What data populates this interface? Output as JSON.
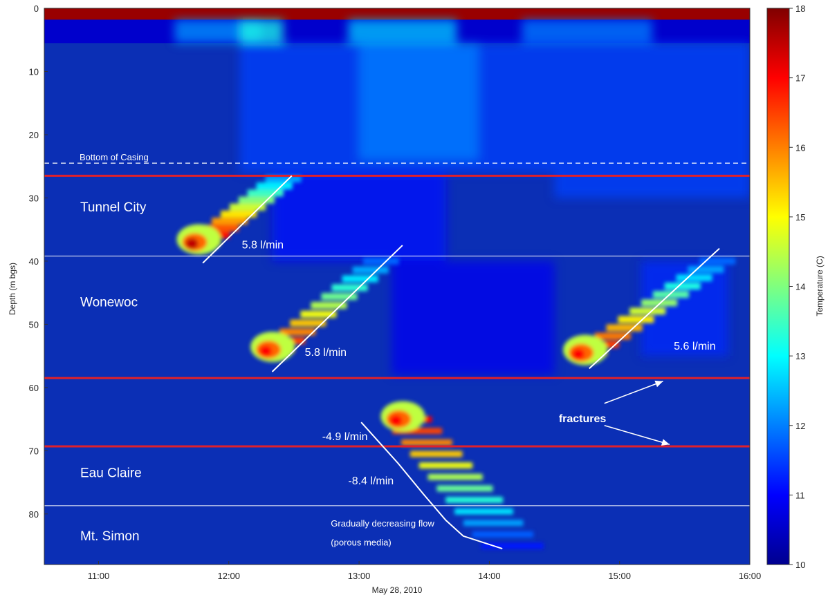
{
  "chart_data": {
    "type": "heatmap",
    "xlabel": "May 28, 2010",
    "ylabel": "Depth (m bgs)",
    "x_range": [
      "10:35",
      "16:00"
    ],
    "y_range": [
      0,
      88
    ],
    "y_reversed": true,
    "x_ticks": [
      "11:00",
      "12:00",
      "13:00",
      "14:00",
      "15:00",
      "16:00"
    ],
    "y_ticks": [
      0,
      10,
      20,
      30,
      40,
      50,
      60,
      70,
      80
    ],
    "colorbar": {
      "label": "Temperature (C)",
      "min": 10,
      "max": 18,
      "ticks": [
        10,
        11,
        12,
        13,
        14,
        15,
        16,
        17,
        18
      ],
      "colormap": "jet"
    },
    "formation_boundaries": [
      {
        "depth": 26.5,
        "style": "red"
      },
      {
        "depth": 39.2,
        "style": "white"
      },
      {
        "depth": 58.5,
        "style": "red"
      },
      {
        "depth": 69.3,
        "style": "red"
      },
      {
        "depth": 78.7,
        "style": "white"
      }
    ],
    "casing": {
      "label": "Bottom of Casing",
      "depth": 24.5
    },
    "formations": [
      {
        "name": "Tunnel City",
        "label_depth": 31.5
      },
      {
        "name": "Wonewoc",
        "label_depth": 46.5
      },
      {
        "name": "Eau Claire",
        "label_depth": 73.5
      },
      {
        "name": "Mt. Simon",
        "label_depth": 83.5
      }
    ],
    "flow_lines": [
      {
        "label": "5.8 l/min",
        "from": {
          "time": "11:48",
          "depth": 40.3
        },
        "to": {
          "time": "12:29",
          "depth": 26.5
        },
        "label_at": {
          "time": "12:06",
          "depth": 38
        }
      },
      {
        "label": "5.8 l/min",
        "from": {
          "time": "12:20",
          "depth": 57.5
        },
        "to": {
          "time": "13:20",
          "depth": 37.5
        },
        "label_at": {
          "time": "12:35",
          "depth": 55
        }
      },
      {
        "label": "5.6 l/min",
        "from": {
          "time": "14:46",
          "depth": 57
        },
        "to": {
          "time": "15:46",
          "depth": 38
        },
        "label_at": {
          "time": "15:25",
          "depth": 54
        }
      }
    ],
    "curve_labels": [
      {
        "label": "-4.9 l/min",
        "time": "12:43",
        "depth": 68.3
      },
      {
        "label": "-8.4 l/min",
        "time": "12:55",
        "depth": 75.3
      }
    ],
    "decreasing_curve": [
      {
        "time": "13:01",
        "depth": 65.5
      },
      {
        "time": "13:18",
        "depth": 72
      },
      {
        "time": "13:30",
        "depth": 77
      },
      {
        "time": "13:40",
        "depth": 81
      },
      {
        "time": "13:48",
        "depth": 83.5
      },
      {
        "time": "14:06",
        "depth": 85.5
      }
    ],
    "annotations": [
      {
        "text": "Gradually decreasing flow",
        "time": "12:47",
        "depth": 82
      },
      {
        "text": "(porous media)",
        "time": "12:47",
        "depth": 85
      }
    ],
    "fractures": {
      "label": "fractures",
      "label_at": {
        "time": "14:32",
        "depth": 65.5
      },
      "arrows": [
        {
          "from": {
            "time": "14:53",
            "depth": 62.5
          },
          "to": {
            "time": "15:20",
            "depth": 59
          }
        },
        {
          "from": {
            "time": "14:53",
            "depth": 66
          },
          "to": {
            "time": "15:23",
            "depth": 69
          }
        }
      ]
    },
    "tracer_pulses": [
      {
        "time": "11:43",
        "depth": 37,
        "peak_temp": 17.5
      },
      {
        "time": "12:17",
        "depth": 54,
        "peak_temp": 17.0
      },
      {
        "time": "13:17",
        "depth": 65,
        "peak_temp": 17.0
      },
      {
        "time": "14:41",
        "depth": 54.5,
        "peak_temp": 17.0
      }
    ]
  }
}
